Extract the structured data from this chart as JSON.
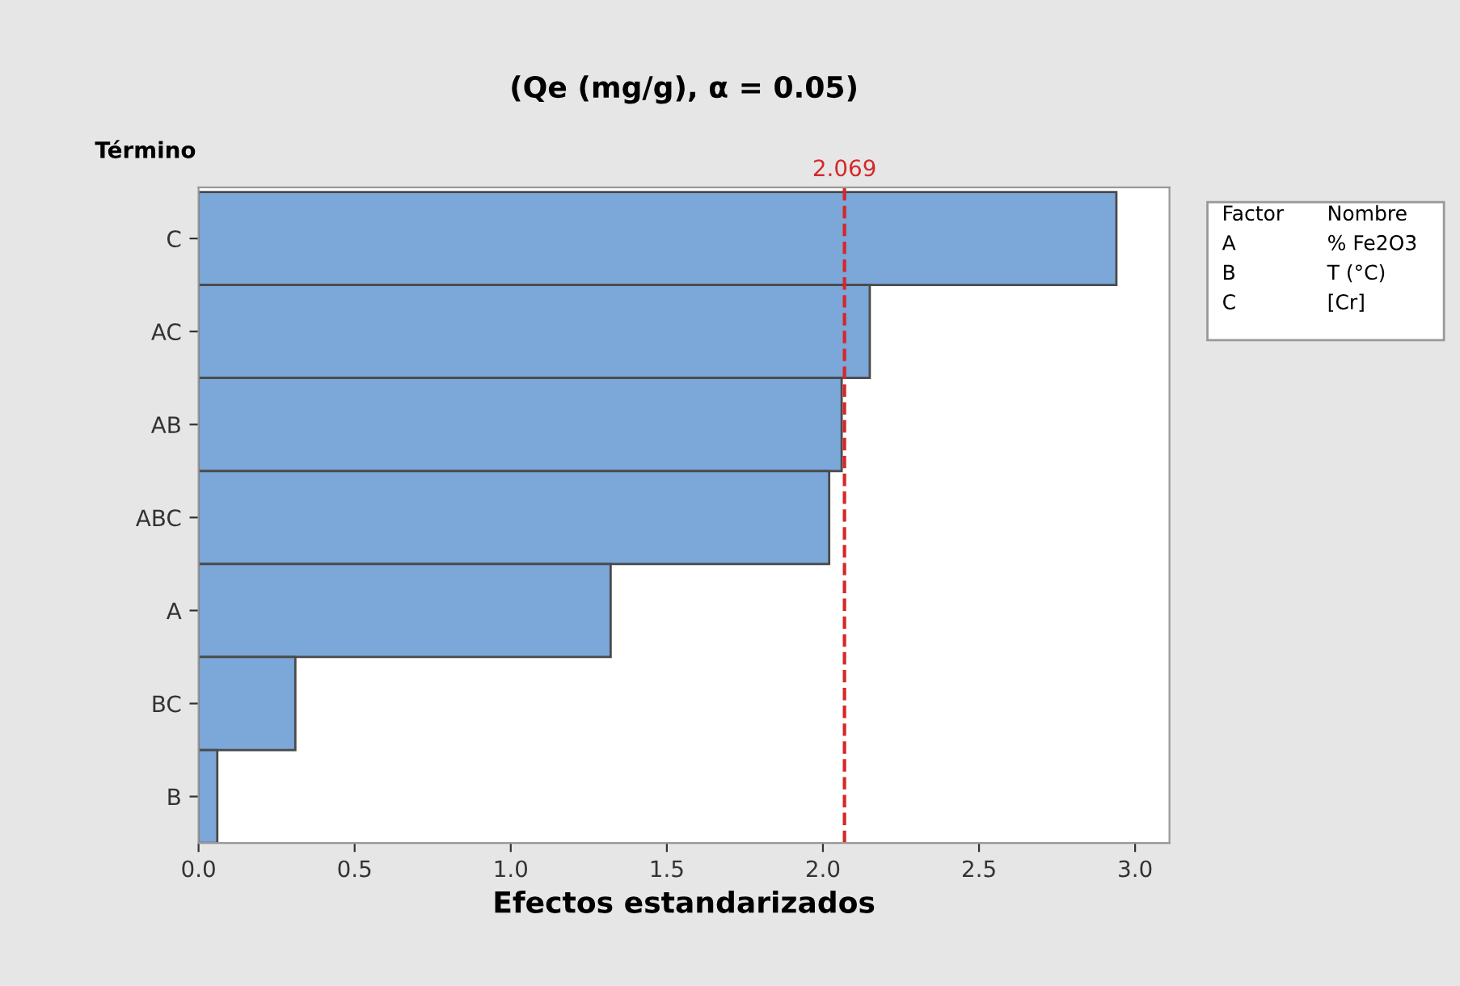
{
  "chart_data": {
    "type": "bar",
    "orientation": "horizontal",
    "title": "(Qe (mg/g), α = 0.05)",
    "xlabel": "Efectos estandarizados",
    "ylabel": "Término",
    "categories": [
      "C",
      "AC",
      "AB",
      "ABC",
      "A",
      "BC",
      "B"
    ],
    "values": [
      2.94,
      2.15,
      2.06,
      2.02,
      1.32,
      0.31,
      0.06
    ],
    "color": "#7ba7d9",
    "xlim": [
      0,
      3.11
    ],
    "xticks": [
      {
        "value": 0,
        "label": "0.0"
      },
      {
        "value": 0.5,
        "label": "0.5"
      },
      {
        "value": 1,
        "label": "1.0"
      },
      {
        "value": 1.5,
        "label": "1.5"
      },
      {
        "value": 2,
        "label": "2.0"
      },
      {
        "value": 2.5,
        "label": "2.5"
      },
      {
        "value": 3,
        "label": "3.0"
      }
    ],
    "ref_lines": [
      {
        "axis": "x",
        "value": 2.069,
        "label": "2.069",
        "color": "#d62728",
        "line_style": "dashed"
      }
    ],
    "annotations": [
      "Factor",
      "Nombre",
      "A",
      "% Fe2O3",
      "B",
      "T (°C)",
      "C",
      "[Cr]"
    ],
    "grid": false,
    "legend": false
  }
}
